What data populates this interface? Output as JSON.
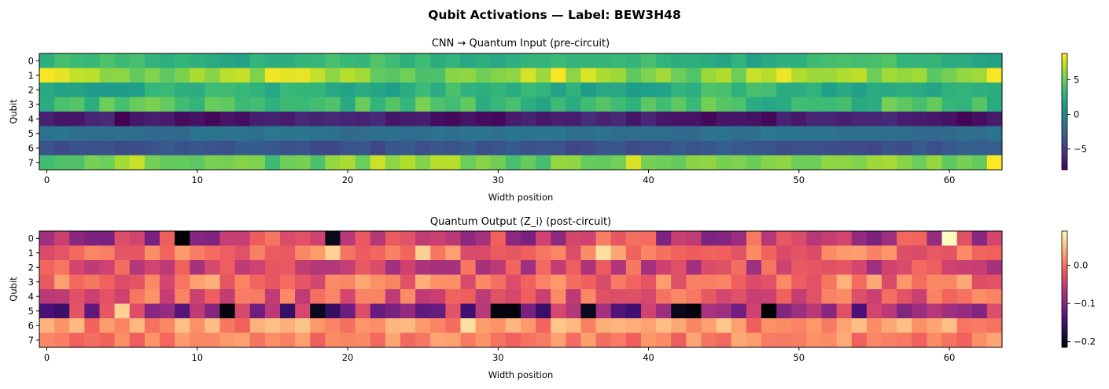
{
  "figure": {
    "suptitle": "Qubit Activations — Label: BEW3H48"
  },
  "chart_data": [
    {
      "type": "heatmap",
      "title": "CNN → Quantum Input (pre-circuit)",
      "xlabel": "Width position",
      "ylabel": "Qubit",
      "colormap": "viridis",
      "rows": 8,
      "cols": 64,
      "x_ticks": [
        "0",
        "10",
        "20",
        "30",
        "40",
        "50",
        "60"
      ],
      "y_ticks": [
        "0",
        "1",
        "2",
        "3",
        "4",
        "5",
        "6",
        "7"
      ],
      "colorbar": {
        "min": -8,
        "max": 8.8,
        "ticks": [
          "5",
          "0",
          "−5"
        ],
        "tick_values": [
          5,
          0,
          -5
        ]
      },
      "row_base": [
        3.0,
        6.2,
        2.6,
        3.4,
        -6.8,
        -1.8,
        -3.7,
        5.5
      ],
      "row_variation": [
        0.7,
        1.1,
        0.7,
        0.9,
        0.45,
        0.3,
        0.35,
        0.9
      ],
      "row_noise": [
        0.8,
        1.4,
        0.9,
        1.3,
        0.6,
        0.35,
        0.5,
        1.5
      ],
      "values_seed": 17,
      "overrides": [
        {
          "row": 1,
          "col": 63,
          "value": 8.6
        },
        {
          "row": 7,
          "col": 63,
          "value": 8.8
        },
        {
          "row": 4,
          "col": 5,
          "value": -8.0
        },
        {
          "row": 1,
          "col": 1,
          "value": 8.2
        }
      ]
    },
    {
      "type": "heatmap",
      "title": "Quantum Output ⟨Z_i⟩ (post-circuit)",
      "xlabel": "Width position",
      "ylabel": "Qubit",
      "colormap": "magma",
      "rows": 8,
      "cols": 64,
      "x_ticks": [
        "0",
        "10",
        "20",
        "30",
        "40",
        "50",
        "60"
      ],
      "y_ticks": [
        "0",
        "1",
        "2",
        "3",
        "4",
        "5",
        "6",
        "7"
      ],
      "colorbar": {
        "min": -0.215,
        "max": 0.09,
        "ticks": [
          "0.0",
          "−0.1",
          "−0.2"
        ],
        "tick_values": [
          0.0,
          -0.1,
          -0.2
        ]
      },
      "row_base": [
        -0.05,
        0.0,
        -0.04,
        0.0,
        -0.02,
        -0.09,
        0.02,
        0.01
      ],
      "row_noise": [
        0.06,
        0.035,
        0.045,
        0.04,
        0.04,
        0.07,
        0.035,
        0.025
      ],
      "values_seed": 91,
      "overrides": [
        {
          "row": 0,
          "col": 9,
          "value": -0.215
        },
        {
          "row": 0,
          "col": 19,
          "value": -0.2
        },
        {
          "row": 0,
          "col": 60,
          "value": 0.09
        },
        {
          "row": 5,
          "col": 12,
          "value": -0.21
        },
        {
          "row": 5,
          "col": 18,
          "value": -0.2
        },
        {
          "row": 5,
          "col": 30,
          "value": -0.21
        },
        {
          "row": 5,
          "col": 31,
          "value": -0.21
        },
        {
          "row": 5,
          "col": 36,
          "value": -0.2
        },
        {
          "row": 5,
          "col": 42,
          "value": -0.2
        },
        {
          "row": 5,
          "col": 43,
          "value": -0.21
        },
        {
          "row": 5,
          "col": 48,
          "value": -0.215
        },
        {
          "row": 5,
          "col": 5,
          "value": 0.06
        },
        {
          "row": 1,
          "col": 37,
          "value": 0.07
        },
        {
          "row": 6,
          "col": 28,
          "value": 0.07
        },
        {
          "row": 1,
          "col": 19,
          "value": 0.06
        },
        {
          "row": 1,
          "col": 25,
          "value": 0.06
        }
      ]
    }
  ]
}
